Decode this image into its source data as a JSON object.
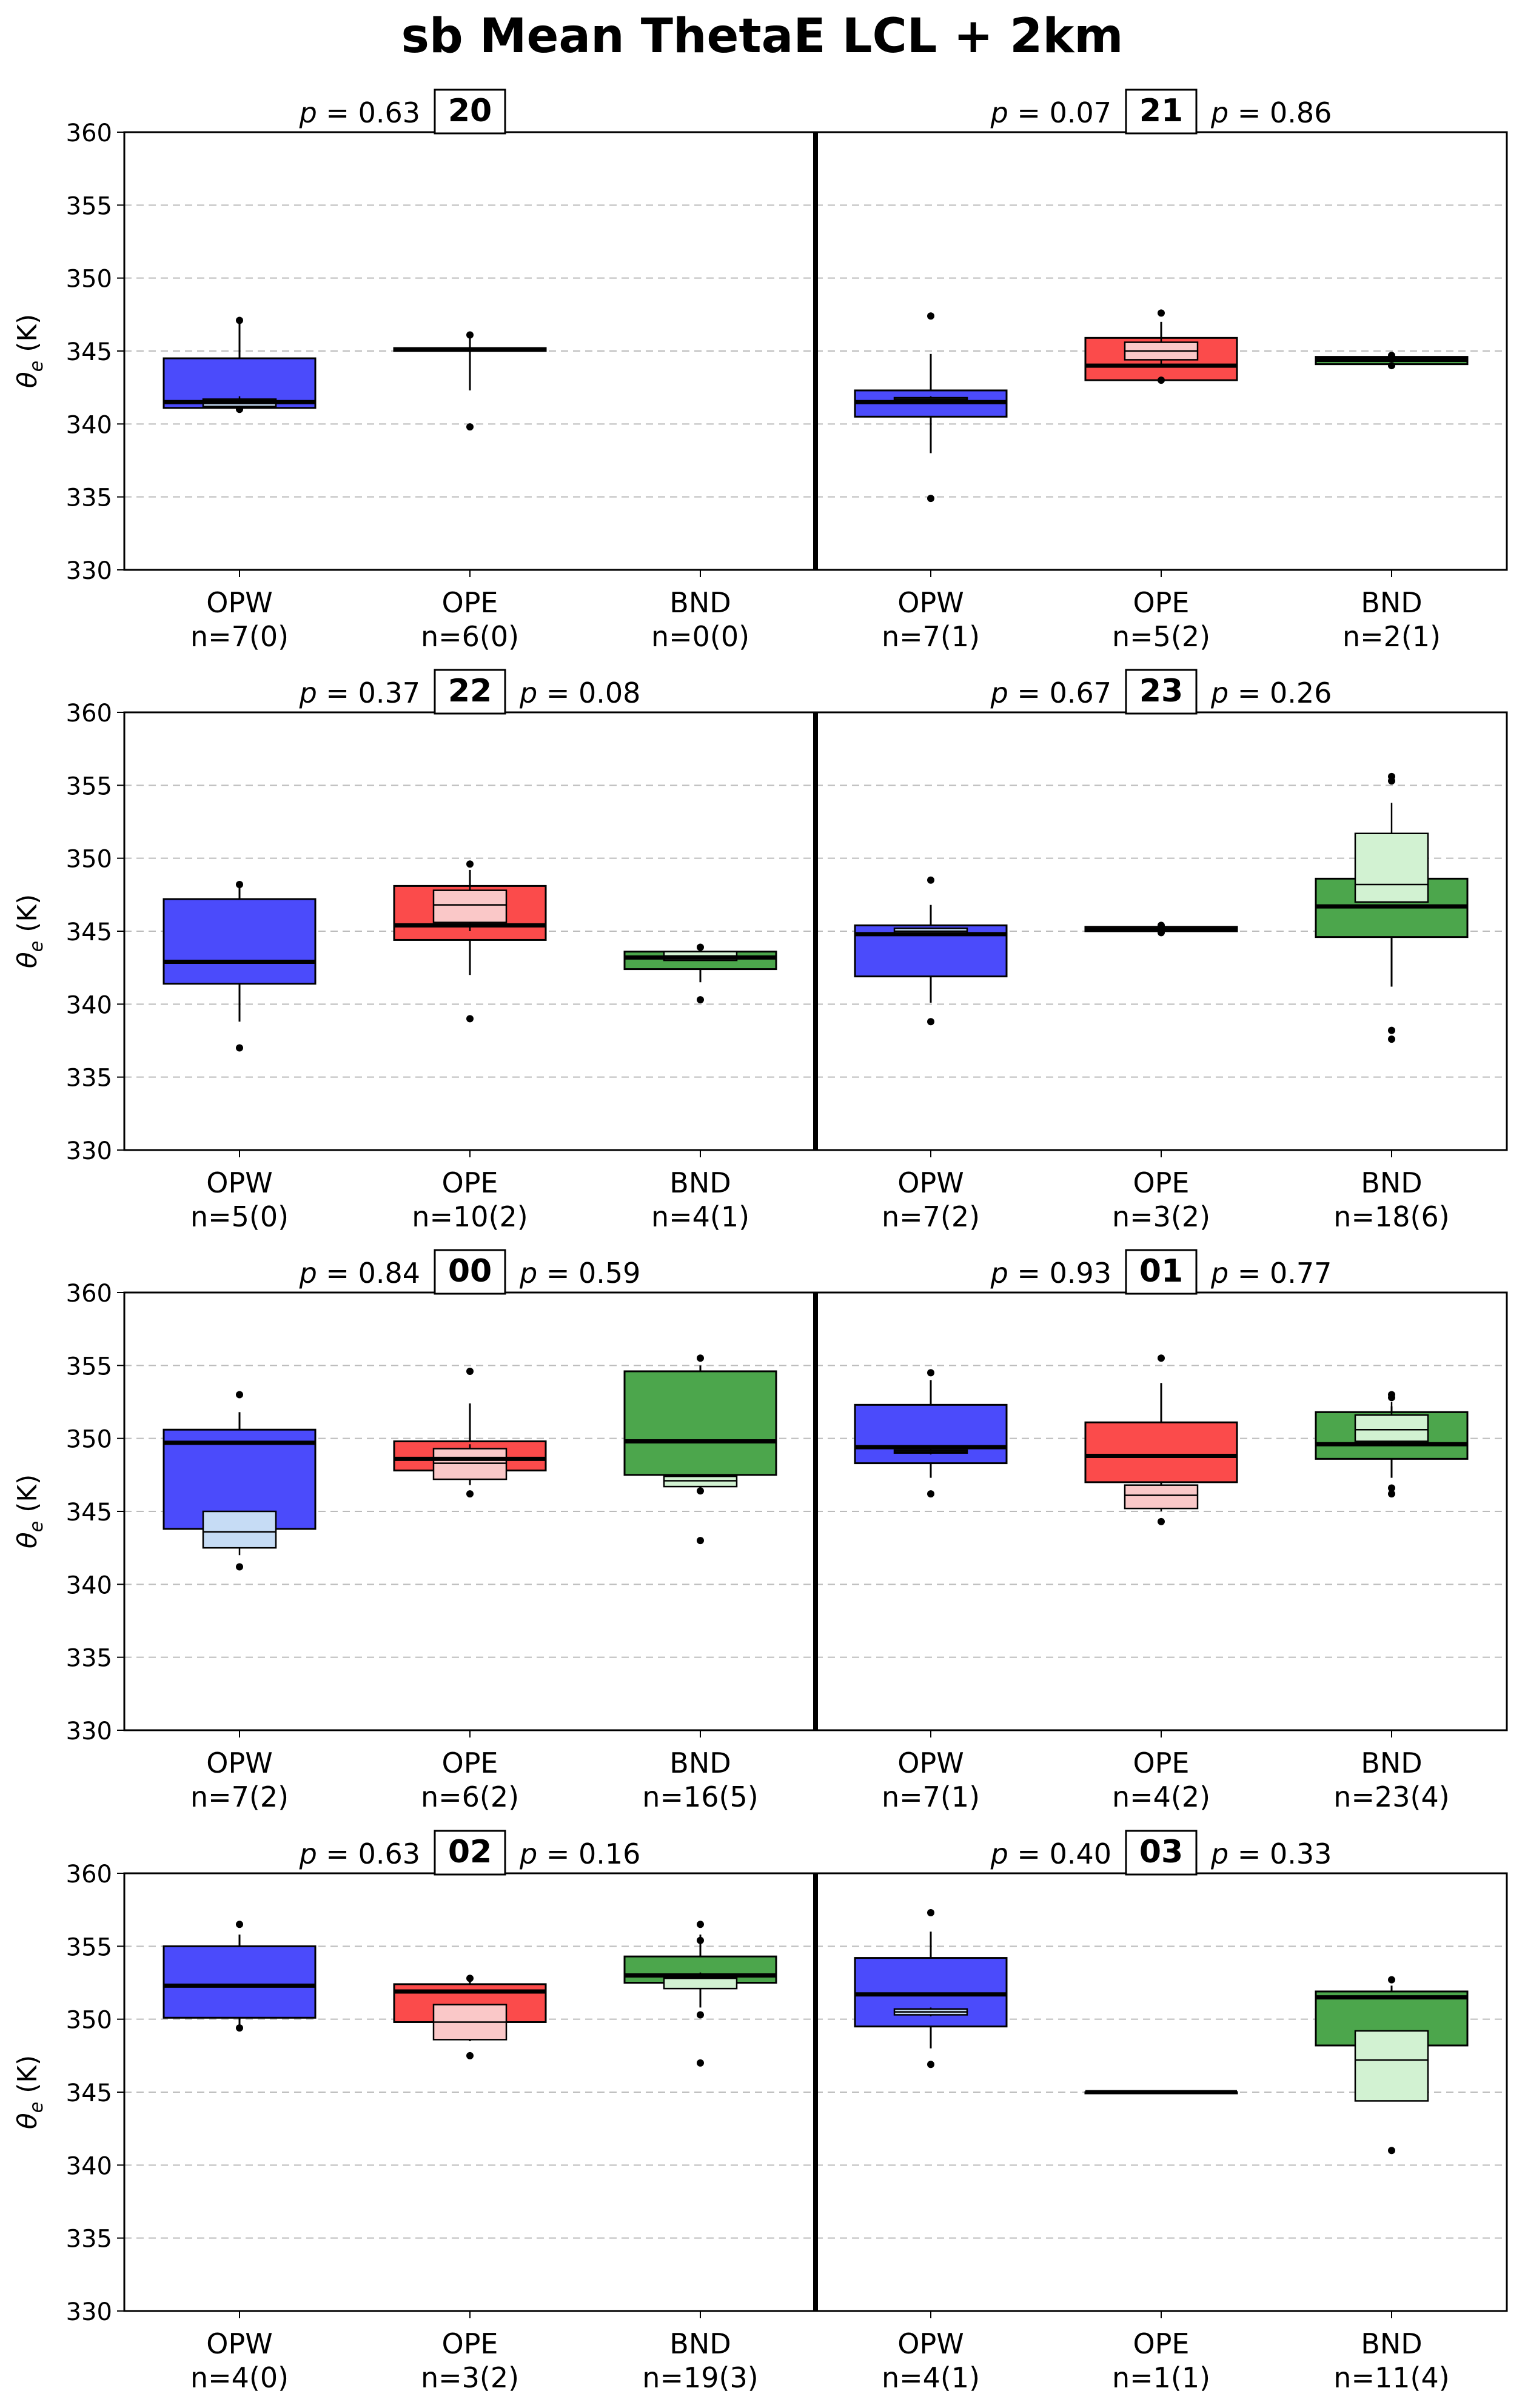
{
  "title": "sb Mean ThetaE LCL + 2km",
  "ylabel_main": "θ",
  "ylabel_sub": "e",
  "ylabel_unit": " (K)",
  "colors": {
    "OPW": "#4b4bfb",
    "OPW_light": "#c6dcf5",
    "OPE": "#fb4b4b",
    "OPE_light": "#fac8c8",
    "BND": "#4ca64c",
    "BND_light": "#d2f2d2",
    "grid": "#bbbbbb"
  },
  "chart_data": {
    "type": "box",
    "ylim": [
      330,
      360
    ],
    "yticks": [
      330,
      335,
      340,
      345,
      350,
      355,
      360
    ],
    "categories": [
      "OPW",
      "OPE",
      "BND"
    ],
    "grid": "horizontal-dashed",
    "rows": [
      {
        "panels": [
          {
            "hour": "20",
            "p_left": "0.63",
            "p_right": "",
            "counts": [
              "n=7(0)",
              "n=6(0)",
              "n=0(0)"
            ],
            "boxes": [
              {
                "q1": 341.1,
                "med": 341.5,
                "q3": 344.5,
                "wlo": 341.0,
                "whi": 347.0,
                "fl": [
                  341.0,
                  347.1
                ],
                "sub": {
                  "q1": 341.2,
                  "med": 341.6,
                  "q3": 341.7,
                  "wlo": 341.0,
                  "whi": 341.9
                }
              },
              {
                "q1": 345.0,
                "med": 345.1,
                "q3": 345.2,
                "wlo": 342.3,
                "whi": 346.0,
                "fl": [
                  339.8,
                  346.1
                ]
              },
              null
            ]
          },
          {
            "hour": "21",
            "p_left": "0.07",
            "p_right": "0.86",
            "counts": [
              "n=7(1)",
              "n=5(2)",
              "n=2(1)"
            ],
            "boxes": [
              {
                "q1": 340.5,
                "med": 341.5,
                "q3": 342.3,
                "wlo": 338.0,
                "whi": 344.8,
                "fl": [
                  334.9,
                  347.4
                ],
                "sub": {
                  "q1": 341.6,
                  "med": 341.7,
                  "q3": 341.8,
                  "wlo": 341.5,
                  "whi": 341.9
                }
              },
              {
                "q1": 343.0,
                "med": 344.0,
                "q3": 345.9,
                "wlo": 343.0,
                "whi": 347.0,
                "fl": [
                  343.0,
                  347.6
                ],
                "sub": {
                  "q1": 344.4,
                  "med": 345.0,
                  "q3": 345.6,
                  "wlo": 344.0,
                  "whi": 346.0
                }
              },
              {
                "q1": 344.1,
                "med": 344.4,
                "q3": 344.6,
                "wlo": 344.0,
                "whi": 344.8,
                "fl": [
                  344.0,
                  344.7
                ]
              }
            ]
          }
        ]
      },
      {
        "panels": [
          {
            "hour": "22",
            "p_left": "0.37",
            "p_right": "0.08",
            "counts": [
              "n=5(0)",
              "n=10(2)",
              "n=4(1)"
            ],
            "boxes": [
              {
                "q1": 341.4,
                "med": 342.9,
                "q3": 347.2,
                "wlo": 338.8,
                "whi": 348.0,
                "fl": [
                  337.0,
                  348.2
                ]
              },
              {
                "q1": 344.4,
                "med": 345.4,
                "q3": 348.1,
                "wlo": 342.0,
                "whi": 349.2,
                "fl": [
                  339.0,
                  349.6
                ],
                "sub": {
                  "q1": 345.6,
                  "med": 346.8,
                  "q3": 347.8,
                  "wlo": 345.0,
                  "whi": 348.5
                }
              },
              {
                "q1": 342.4,
                "med": 343.2,
                "q3": 343.6,
                "wlo": 341.5,
                "whi": 343.9,
                "fl": [
                  340.3,
                  343.9
                ],
                "sub": {
                  "q1": 343.0,
                  "med": 343.3,
                  "q3": 343.6,
                  "wlo": 343.0,
                  "whi": 343.8
                }
              }
            ]
          },
          {
            "hour": "23",
            "p_left": "0.67",
            "p_right": "0.26",
            "counts": [
              "n=7(2)",
              "n=3(2)",
              "n=18(6)"
            ],
            "boxes": [
              {
                "q1": 341.9,
                "med": 344.8,
                "q3": 345.4,
                "wlo": 340.1,
                "whi": 346.8,
                "fl": [
                  338.8,
                  348.5
                ],
                "sub": {
                  "q1": 344.8,
                  "med": 345.0,
                  "q3": 345.2,
                  "wlo": 344.7,
                  "whi": 345.2
                }
              },
              {
                "q1": 345.0,
                "med": 345.1,
                "q3": 345.3,
                "wlo": 344.9,
                "whi": 345.4,
                "fl": [
                  344.9,
                  345.4
                ]
              },
              {
                "q1": 344.6,
                "med": 346.7,
                "q3": 348.6,
                "wlo": 341.2,
                "whi": 350.0,
                "fl": [
                  337.6,
                  338.2,
                  355.3,
                  355.6
                ],
                "sub": {
                  "q1": 347.0,
                  "med": 348.2,
                  "q3": 351.7,
                  "wlo": 348.0,
                  "whi": 353.8
                }
              }
            ]
          }
        ]
      },
      {
        "panels": [
          {
            "hour": "00",
            "p_left": "0.84",
            "p_right": "0.59",
            "counts": [
              "n=7(2)",
              "n=6(2)",
              "n=16(5)"
            ],
            "boxes": [
              {
                "q1": 343.8,
                "med": 349.7,
                "q3": 350.6,
                "wlo": 342.5,
                "whi": 351.8,
                "fl": [
                  341.2,
                  353.0
                ],
                "sub": {
                  "q1": 342.5,
                  "med": 343.6,
                  "q3": 345.0,
                  "wlo": 342.0,
                  "whi": 345.0
                }
              },
              {
                "q1": 347.8,
                "med": 348.6,
                "q3": 349.8,
                "wlo": 346.8,
                "whi": 352.4,
                "fl": [
                  346.2,
                  354.6
                ],
                "sub": {
                  "q1": 347.2,
                  "med": 348.3,
                  "q3": 349.3,
                  "wlo": 347.0,
                  "whi": 349.6
                }
              },
              {
                "q1": 347.5,
                "med": 349.8,
                "q3": 354.6,
                "wlo": 346.5,
                "whi": 355.0,
                "fl": [
                  343.0,
                  346.4,
                  355.5
                ],
                "sub": {
                  "q1": 346.7,
                  "med": 347.1,
                  "q3": 347.4,
                  "wlo": 346.6,
                  "whi": 347.5
                }
              }
            ]
          },
          {
            "hour": "01",
            "p_left": "0.93",
            "p_right": "0.77",
            "counts": [
              "n=7(1)",
              "n=4(2)",
              "n=23(4)"
            ],
            "boxes": [
              {
                "q1": 348.3,
                "med": 349.4,
                "q3": 352.3,
                "wlo": 347.3,
                "whi": 354.0,
                "fl": [
                  346.2,
                  354.5
                ],
                "sub": {
                  "q1": 349.0,
                  "med": 349.1,
                  "q3": 349.2,
                  "wlo": 348.9,
                  "whi": 349.3
                }
              },
              {
                "q1": 347.0,
                "med": 348.8,
                "q3": 351.1,
                "wlo": 345.2,
                "whi": 353.8,
                "fl": [
                  344.3,
                  355.5
                ],
                "sub": {
                  "q1": 345.2,
                  "med": 346.1,
                  "q3": 346.8,
                  "wlo": 345.0,
                  "whi": 346.8
                }
              },
              {
                "q1": 348.6,
                "med": 349.6,
                "q3": 351.8,
                "wlo": 347.3,
                "whi": 352.2,
                "fl": [
                  346.2,
                  346.6,
                  352.8,
                  353.0
                ],
                "sub": {
                  "q1": 349.8,
                  "med": 350.6,
                  "q3": 351.6,
                  "wlo": 349.5,
                  "whi": 352.5
                }
              }
            ]
          }
        ]
      },
      {
        "panels": [
          {
            "hour": "02",
            "p_left": "0.63",
            "p_right": "0.16",
            "counts": [
              "n=4(0)",
              "n=3(2)",
              "n=19(3)"
            ],
            "boxes": [
              {
                "q1": 350.1,
                "med": 352.3,
                "q3": 355.0,
                "wlo": 349.6,
                "whi": 355.8,
                "fl": [
                  349.4,
                  356.5
                ]
              },
              {
                "q1": 349.8,
                "med": 351.9,
                "q3": 352.4,
                "wlo": 348.5,
                "whi": 352.6,
                "fl": [
                  347.5,
                  352.8
                ],
                "sub": {
                  "q1": 348.6,
                  "med": 349.8,
                  "q3": 351.0,
                  "wlo": 348.5,
                  "whi": 351.0
                }
              },
              {
                "q1": 352.5,
                "med": 353.0,
                "q3": 354.3,
                "wlo": 350.8,
                "whi": 355.8,
                "fl": [
                  347.0,
                  350.3,
                  355.4,
                  356.5
                ],
                "sub": {
                  "q1": 352.1,
                  "med": 352.8,
                  "q3": 353.0,
                  "wlo": 352.0,
                  "whi": 353.2
                }
              }
            ]
          },
          {
            "hour": "03",
            "p_left": "0.40",
            "p_right": "0.33",
            "counts": [
              "n=4(1)",
              "n=1(1)",
              "n=11(4)"
            ],
            "boxes": [
              {
                "q1": 349.5,
                "med": 351.7,
                "q3": 354.2,
                "wlo": 348.0,
                "whi": 356.0,
                "fl": [
                  346.9,
                  357.3
                ],
                "sub": {
                  "q1": 350.3,
                  "med": 350.5,
                  "q3": 350.7,
                  "wlo": 350.2,
                  "whi": 350.8
                }
              },
              {
                "q1": 345.0,
                "med": 345.0,
                "q3": 345.0,
                "wlo": 345.0,
                "whi": 345.0,
                "fl": []
              },
              {
                "q1": 348.2,
                "med": 351.5,
                "q3": 351.9,
                "wlo": 344.5,
                "whi": 352.3,
                "fl": [
                  341.0,
                  352.7
                ],
                "sub": {
                  "q1": 344.4,
                  "med": 347.2,
                  "q3": 349.2,
                  "wlo": 345.6,
                  "whi": 348.5
                }
              }
            ]
          }
        ]
      }
    ]
  }
}
